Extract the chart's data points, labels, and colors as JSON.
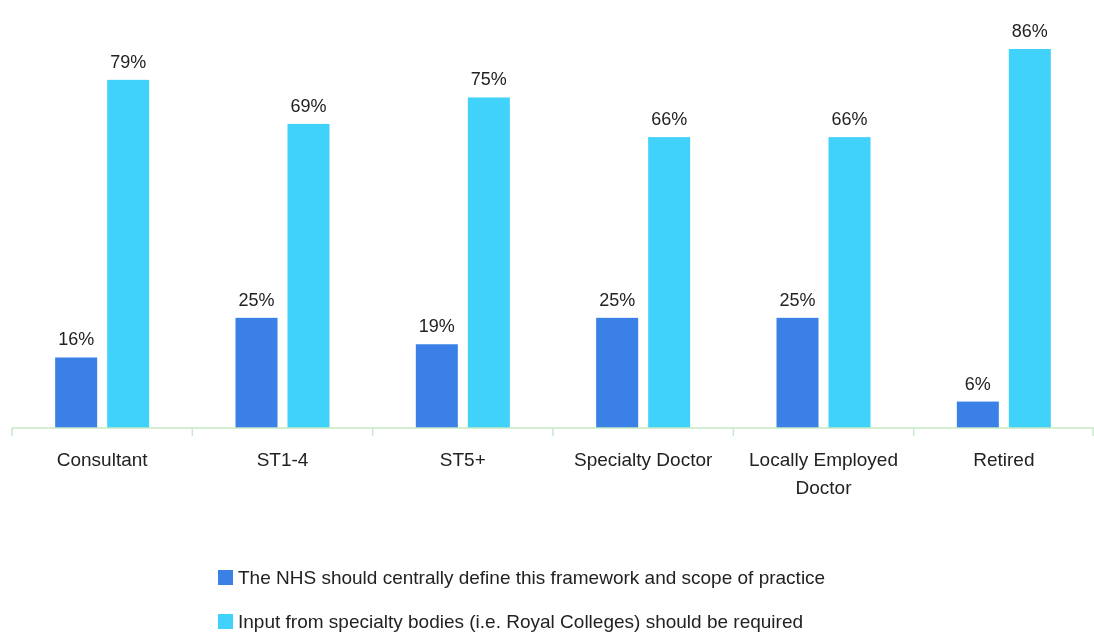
{
  "chart_data": {
    "type": "bar",
    "categories": [
      "Consultant",
      "ST1-4",
      "ST5+",
      "Specialty Doctor",
      "Locally Employed Doctor",
      "Retired"
    ],
    "series": [
      {
        "name": "The NHS should centrally define this framework and scope of practice",
        "color": "#3a80e6",
        "values": [
          16,
          25,
          19,
          25,
          25,
          6
        ],
        "value_labels": [
          "16%",
          "25%",
          "19%",
          "25%",
          "25%",
          "6%"
        ]
      },
      {
        "name": "Input from specialty bodies (i.e. Royal Colleges) should be required",
        "color": "#40d2fa",
        "values": [
          79,
          69,
          75,
          66,
          66,
          86
        ],
        "value_labels": [
          "79%",
          "69%",
          "75%",
          "66%",
          "66%",
          "86%"
        ]
      }
    ],
    "legend": "bottom"
  }
}
